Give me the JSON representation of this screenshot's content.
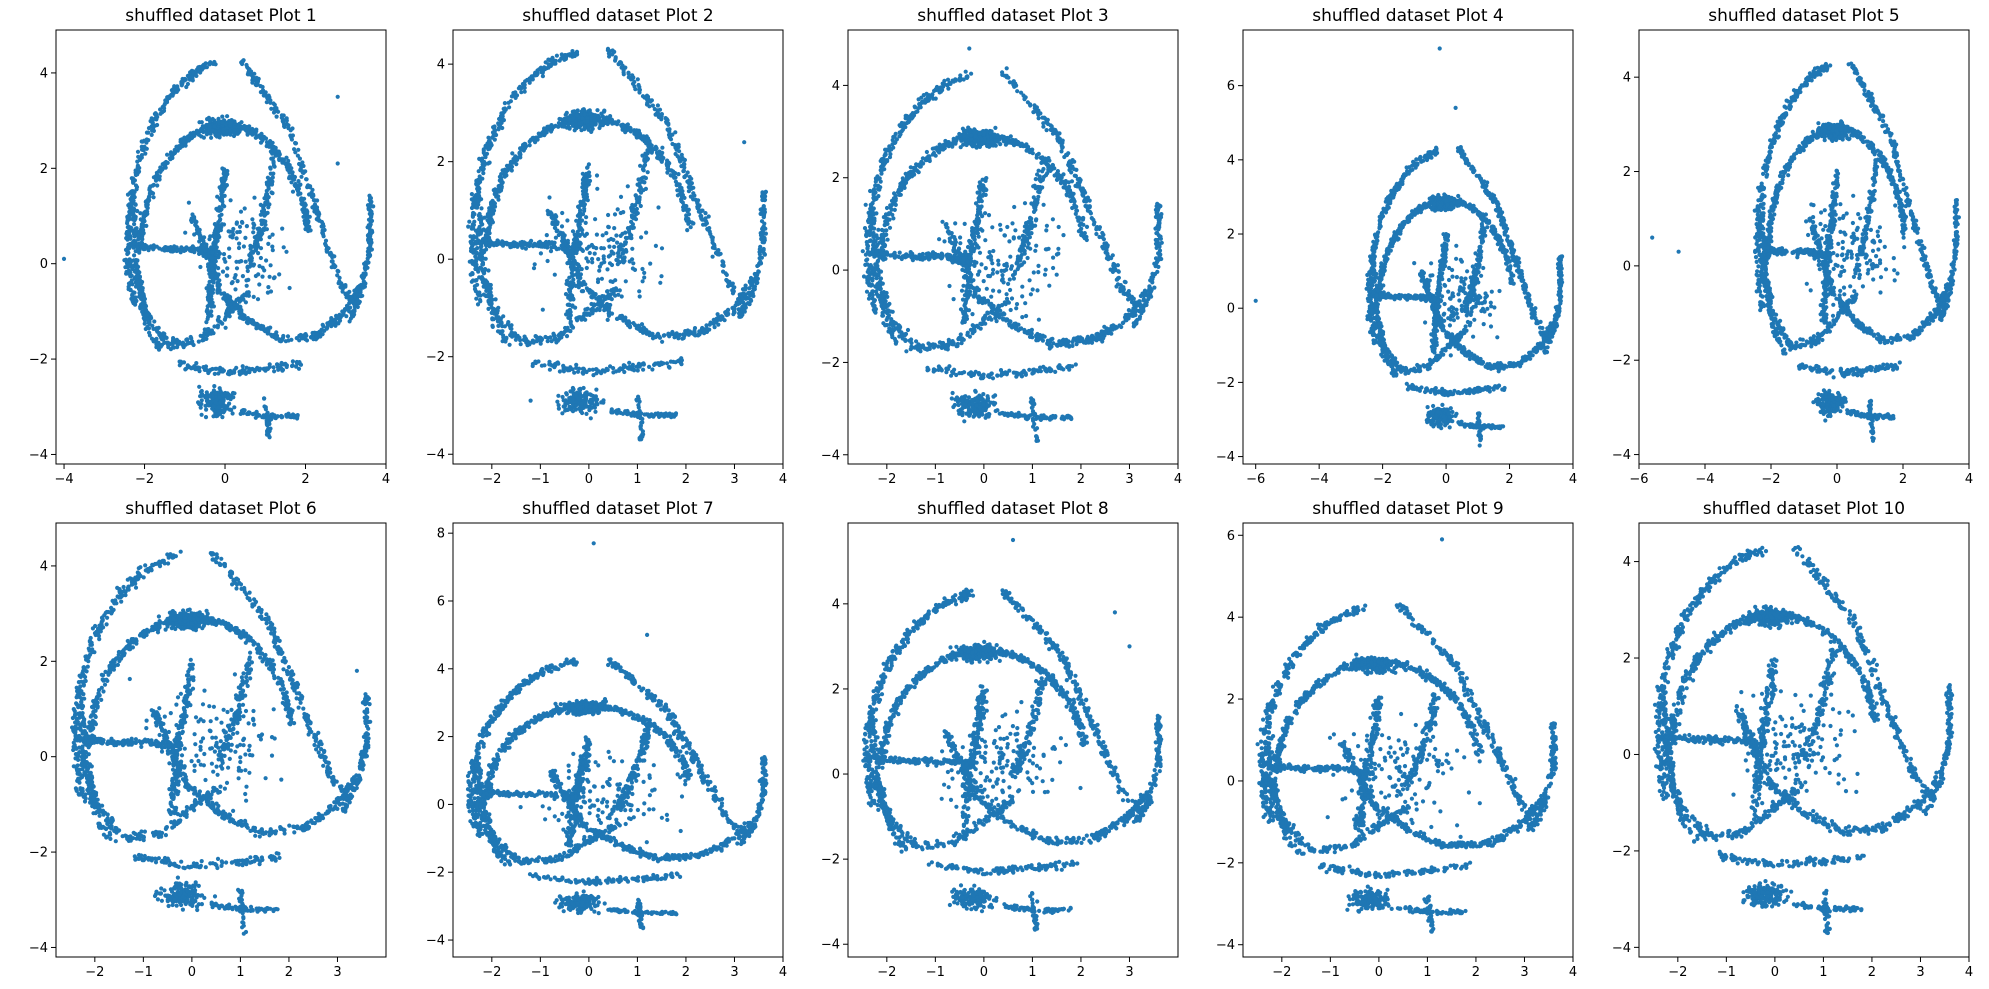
{
  "figure": {
    "point_color": "#1f77b4"
  },
  "chart_data": [
    {
      "type": "scatter",
      "title": "shuffled dataset Plot 1",
      "xlim": [
        -4.2,
        4.0
      ],
      "ylim": [
        -4.2,
        4.9
      ],
      "xticks": [
        -4,
        -2,
        0,
        2,
        4
      ],
      "yticks": [
        -4,
        -2,
        0,
        2,
        4
      ],
      "xticklabels": [
        "−4",
        "−2",
        "0",
        "2",
        "4"
      ],
      "yticklabels": [
        "−4",
        "−2",
        "0",
        "2",
        "4"
      ],
      "outliers": [
        [
          -4.0,
          0.1
        ],
        [
          2.8,
          3.5
        ],
        [
          2.8,
          2.1
        ]
      ]
    },
    {
      "type": "scatter",
      "title": "shuffled dataset Plot 2",
      "xlim": [
        -2.8,
        4.0
      ],
      "ylim": [
        -4.2,
        4.7
      ],
      "xticks": [
        -2,
        -1,
        0,
        1,
        2,
        3,
        4
      ],
      "yticks": [
        -4,
        -2,
        0,
        2,
        4
      ],
      "xticklabels": [
        "−2",
        "−1",
        "0",
        "1",
        "2",
        "3",
        "4"
      ],
      "yticklabels": [
        "−4",
        "−2",
        "0",
        "2",
        "4"
      ],
      "outliers": [
        [
          3.2,
          2.4
        ],
        [
          -1.2,
          -2.9
        ]
      ]
    },
    {
      "type": "scatter",
      "title": "shuffled dataset Plot 3",
      "xlim": [
        -2.8,
        4.0
      ],
      "ylim": [
        -4.2,
        5.2
      ],
      "xticks": [
        -2,
        -1,
        0,
        1,
        2,
        3,
        4
      ],
      "yticks": [
        -4,
        -2,
        0,
        2,
        4
      ],
      "xticklabels": [
        "−2",
        "−1",
        "0",
        "1",
        "2",
        "3",
        "4"
      ],
      "yticklabels": [
        "−4",
        "−2",
        "0",
        "2",
        "4"
      ],
      "outliers": [
        [
          -0.3,
          4.8
        ],
        [
          1.5,
          -0.1
        ]
      ]
    },
    {
      "type": "scatter",
      "title": "shuffled dataset Plot 4",
      "xlim": [
        -6.4,
        4.0
      ],
      "ylim": [
        -4.2,
        7.5
      ],
      "xticks": [
        -6,
        -4,
        -2,
        0,
        2,
        4
      ],
      "yticks": [
        -4,
        -2,
        0,
        2,
        4,
        6
      ],
      "xticklabels": [
        "−6",
        "−4",
        "−2",
        "0",
        "2",
        "4"
      ],
      "yticklabels": [
        "−4",
        "−2",
        "0",
        "2",
        "4",
        "6"
      ],
      "outliers": [
        [
          -6.0,
          0.2
        ],
        [
          -0.2,
          7.0
        ],
        [
          0.3,
          5.4
        ]
      ]
    },
    {
      "type": "scatter",
      "title": "shuffled dataset Plot 5",
      "xlim": [
        -6.0,
        4.0
      ],
      "ylim": [
        -4.2,
        5.0
      ],
      "xticks": [
        -6,
        -4,
        -2,
        0,
        2,
        4
      ],
      "yticks": [
        -4,
        -2,
        0,
        2,
        4
      ],
      "xticklabels": [
        "−6",
        "−4",
        "−2",
        "0",
        "2",
        "4"
      ],
      "yticklabels": [
        "−4",
        "−2",
        "0",
        "2",
        "4"
      ],
      "outliers": [
        [
          -5.6,
          0.6
        ],
        [
          -4.8,
          0.3
        ]
      ]
    },
    {
      "type": "scatter",
      "title": "shuffled dataset Plot 6",
      "xlim": [
        -2.8,
        4.0
      ],
      "ylim": [
        -4.2,
        4.9
      ],
      "xticks": [
        -2,
        -1,
        0,
        1,
        2,
        3
      ],
      "yticks": [
        -4,
        -2,
        0,
        2,
        4
      ],
      "xticklabels": [
        "−2",
        "−1",
        "0",
        "1",
        "2",
        "3"
      ],
      "yticklabels": [
        "−4",
        "−2",
        "0",
        "2",
        "4"
      ],
      "outliers": [
        [
          3.4,
          1.8
        ]
      ]
    },
    {
      "type": "scatter",
      "title": "shuffled dataset Plot 7",
      "xlim": [
        -2.8,
        4.0
      ],
      "ylim": [
        -4.5,
        8.3
      ],
      "xticks": [
        -2,
        -1,
        0,
        1,
        2,
        3,
        4
      ],
      "yticks": [
        -4,
        -2,
        0,
        2,
        4,
        6,
        8
      ],
      "xticklabels": [
        "−2",
        "−1",
        "0",
        "1",
        "2",
        "3",
        "4"
      ],
      "yticklabels": [
        "−4",
        "−2",
        "0",
        "2",
        "4",
        "6",
        "8"
      ],
      "outliers": [
        [
          0.1,
          7.7
        ],
        [
          1.2,
          5.0
        ]
      ]
    },
    {
      "type": "scatter",
      "title": "shuffled dataset Plot 8",
      "xlim": [
        -2.8,
        4.0
      ],
      "ylim": [
        -4.3,
        5.9
      ],
      "xticks": [
        -2,
        -1,
        0,
        1,
        2,
        3
      ],
      "yticks": [
        -4,
        -2,
        0,
        2,
        4
      ],
      "xticklabels": [
        "−2",
        "−1",
        "0",
        "1",
        "2",
        "3"
      ],
      "yticklabels": [
        "−4",
        "−2",
        "0",
        "2",
        "4"
      ],
      "outliers": [
        [
          0.6,
          5.5
        ],
        [
          3.0,
          3.0
        ],
        [
          2.7,
          3.8
        ]
      ]
    },
    {
      "type": "scatter",
      "title": "shuffled dataset Plot 9",
      "xlim": [
        -2.8,
        4.0
      ],
      "ylim": [
        -4.3,
        6.3
      ],
      "xticks": [
        -2,
        -1,
        0,
        1,
        2,
        3,
        4
      ],
      "yticks": [
        -4,
        -2,
        0,
        2,
        4,
        6
      ],
      "xticklabels": [
        "−2",
        "−1",
        "0",
        "1",
        "2",
        "3",
        "4"
      ],
      "yticklabels": [
        "−4",
        "−2",
        "0",
        "2",
        "4",
        "6"
      ],
      "outliers": [
        [
          1.3,
          5.9
        ]
      ]
    },
    {
      "type": "scatter",
      "title": "shuffled dataset Plot 10",
      "xlim": [
        -2.8,
        4.0
      ],
      "ylim": [
        -4.2,
        4.8
      ],
      "xticks": [
        -2,
        -1,
        0,
        1,
        2,
        3,
        4
      ],
      "yticks": [
        -4,
        -2,
        0,
        2,
        4
      ],
      "xticklabels": [
        "−2",
        "−1",
        "0",
        "1",
        "2",
        "3",
        "4"
      ],
      "yticklabels": [
        "−4",
        "−2",
        "0",
        "2",
        "4"
      ],
      "outliers": []
    }
  ]
}
